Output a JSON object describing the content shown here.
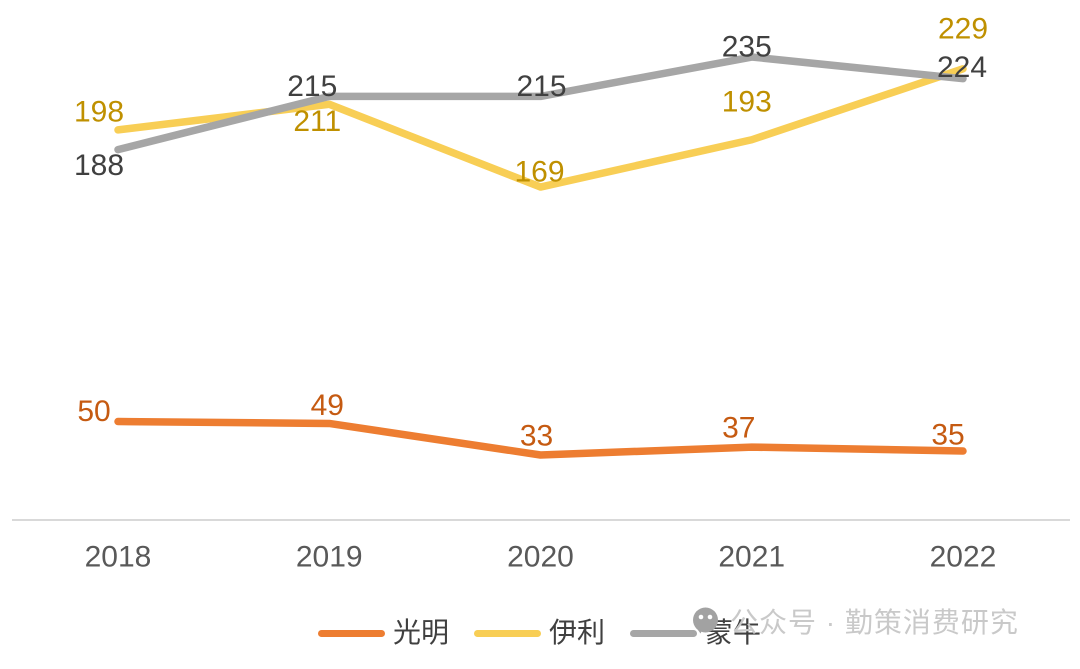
{
  "chart_data": {
    "type": "line",
    "title": "",
    "categories": [
      "2018",
      "2019",
      "2020",
      "2021",
      "2022"
    ],
    "series": [
      {
        "name": "光明",
        "values": [
          50,
          49,
          33,
          37,
          35
        ],
        "color": "#ED7D31",
        "label_color": "#C55A11"
      },
      {
        "name": "伊利",
        "values": [
          198,
          211,
          169,
          193,
          229
        ],
        "color": "#F8CE55",
        "label_color": "#BF9000"
      },
      {
        "name": "蒙牛",
        "values": [
          188,
          215,
          215,
          235,
          224
        ],
        "color": "#A6A6A6",
        "label_color": "#404040"
      }
    ],
    "xlabel": "",
    "ylabel": "",
    "ylim": [
      0,
      264
    ],
    "grid": false,
    "data_labels": true,
    "legend_position": "bottom-center",
    "axis_line_color": "#D9D9D9",
    "tick_label_color": "#595959"
  },
  "watermark": {
    "text": "公众号 · 勤策消费研究",
    "icon": "wechat-official-account-icon",
    "color": "#C9C9C9"
  }
}
